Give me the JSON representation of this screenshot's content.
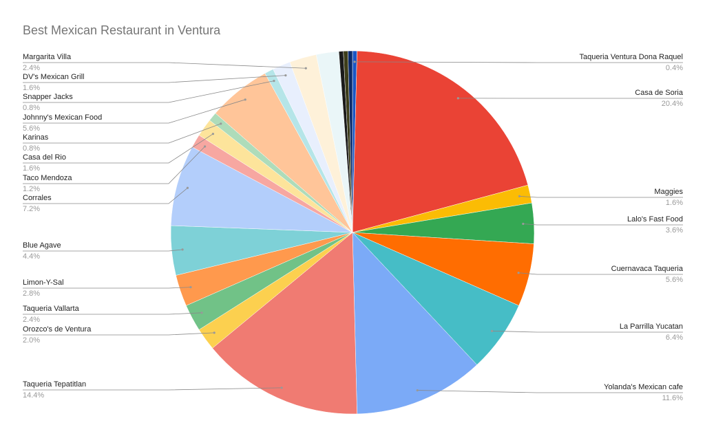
{
  "chart_data": {
    "type": "pie",
    "title": "Best Mexican Restaurant in Ventura",
    "categories": [
      "Taqueria Ventura Dona Raquel",
      "Casa de Soria",
      "Maggies",
      "Lalo's Fast Food",
      "Cuernavaca Taqueria",
      "La Parrilla Yucatan",
      "Yolanda's Mexican cafe",
      "Taqueria Tepatitlan",
      "Orozco's de Ventura",
      "Taqueria Vallarta",
      "Limon-Y-Sal",
      "Blue Agave",
      "Corrales",
      "Taco Mendoza",
      "Casa del Rio",
      "Karinas",
      "Johnny's Mexican Food",
      "Snapper Jacks",
      "DV's Mexican Grill",
      "Margarita Villa",
      null,
      null,
      null,
      null
    ],
    "values": [
      0.4,
      20.4,
      1.6,
      3.6,
      5.6,
      6.4,
      11.6,
      14.4,
      2.0,
      2.4,
      2.8,
      4.4,
      7.2,
      1.2,
      1.6,
      0.8,
      5.6,
      0.8,
      1.6,
      2.4,
      2.0,
      0.4,
      0.4,
      0.4
    ],
    "value_labels": [
      "0.4%",
      "20.4%",
      "1.6%",
      "3.6%",
      "5.6%",
      "6.4%",
      "11.6%",
      "14.4%",
      "2.0%",
      "2.4%",
      "2.8%",
      "4.4%",
      "7.2%",
      "1.2%",
      "1.6%",
      "0.8%",
      "5.6%",
      "0.8%",
      "1.6%",
      "2.4%",
      null,
      null,
      null,
      null
    ],
    "colors": [
      "#1a56c4",
      "#ea4335",
      "#fbbc04",
      "#34a853",
      "#ff6d01",
      "#46bdc6",
      "#7baaf7",
      "#f07b72",
      "#fcd04f",
      "#71c287",
      "#ff994d",
      "#7ed1d7",
      "#b3cefb",
      "#f7a7a1",
      "#fde49b",
      "#aedcba",
      "#ffc599",
      "#b5e5e8",
      "#e8effd",
      "#fef1d9",
      "#eaf6f8",
      "#1a1a1a",
      "#3d3d1a",
      "#0b2a6b"
    ]
  }
}
